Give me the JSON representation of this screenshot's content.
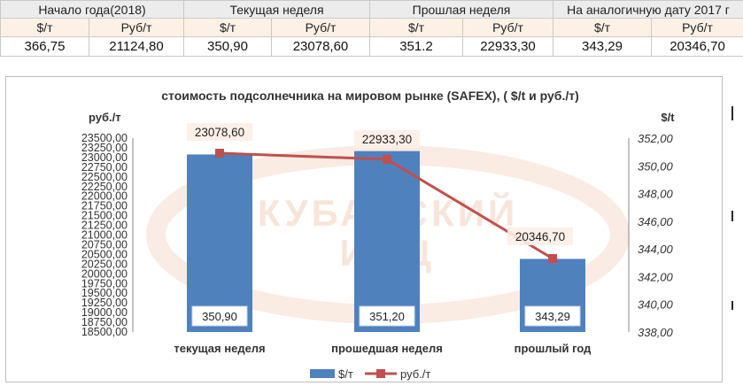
{
  "table": {
    "groups": [
      {
        "label": "Начало года(2018)",
        "usd_header": "$/т",
        "rub_header": "Руб/т",
        "usd": "366,75",
        "rub": "21124,80"
      },
      {
        "label": "Текущая неделя",
        "usd_header": "$/т",
        "rub_header": "Руб/т",
        "usd": "350,90",
        "rub": "23078,60"
      },
      {
        "label": "Прошлая неделя",
        "usd_header": "$/т",
        "rub_header": "Руб/т",
        "usd": "351.2",
        "rub": "22933,30"
      },
      {
        "label": "На аналогичную дату 2017 г",
        "usd_header": "$/т",
        "rub_header": "Руб/т",
        "usd": "343,29",
        "rub": "20346,70"
      }
    ]
  },
  "chart_data": {
    "type": "bar",
    "title": "стоимость подсолнечника на мировом рынке (SAFEX), ( $/t и руб./т)",
    "categories": [
      "текущая неделя",
      "прошедшая неделя",
      "прошлый год"
    ],
    "left_axis": {
      "label": "руб./т",
      "min": 18500,
      "max": 23500,
      "step": 250,
      "ticks": [
        "18500,00",
        "18750,00",
        "19000,00",
        "19250,00",
        "19500,00",
        "19750,00",
        "20000,00",
        "20250,00",
        "20500,00",
        "20750,00",
        "21000,00",
        "21250,00",
        "21500,00",
        "21750,00",
        "22000,00",
        "22250,00",
        "22500,00",
        "22750,00",
        "23000,00",
        "23250,00",
        "23500,00"
      ]
    },
    "right_axis": {
      "label": "$/t",
      "min": 338,
      "max": 352,
      "step": 2,
      "ticks": [
        "338,00",
        "340,00",
        "342,00",
        "344,00",
        "346,00",
        "348,00",
        "350,00",
        "352,00"
      ]
    },
    "series": [
      {
        "name": "$/т",
        "type": "bar",
        "axis": "left",
        "color": "#4f81bd",
        "bar_values": [
          23078.6,
          23165,
          20385
        ],
        "values": [
          350.9,
          351.2,
          343.29
        ],
        "labels": [
          "350,90",
          "351,20",
          "343,29"
        ]
      },
      {
        "name": "руб./т",
        "type": "line",
        "axis": "right",
        "color": "#c0504d",
        "values": [
          23078.6,
          22933.3,
          20346.7
        ],
        "labels": [
          "23078,60",
          "22933,30",
          "20346,70"
        ]
      }
    ],
    "legend": "bottom",
    "grid": false
  },
  "watermark": {
    "line1": "КУБАНСКИЙ",
    "line2": "ИПЦ"
  }
}
